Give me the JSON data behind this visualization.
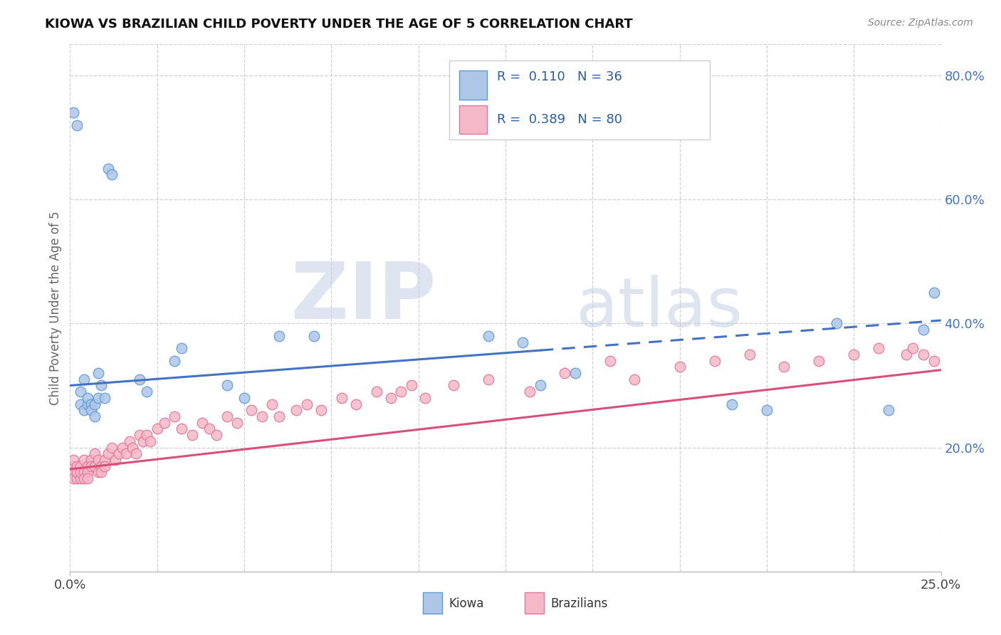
{
  "title": "KIOWA VS BRAZILIAN CHILD POVERTY UNDER THE AGE OF 5 CORRELATION CHART",
  "source": "Source: ZipAtlas.com",
  "ylabel": "Child Poverty Under the Age of 5",
  "right_yticks": [
    0.2,
    0.4,
    0.6,
    0.8
  ],
  "right_ytick_labels": [
    "20.0%",
    "40.0%",
    "60.0%",
    "80.0%"
  ],
  "xlim": [
    0.0,
    0.25
  ],
  "ylim": [
    0.0,
    0.85
  ],
  "kiowa_color": "#aec6e8",
  "kiowa_edge_color": "#5b9bd5",
  "brazilian_color": "#f4b8c8",
  "brazilian_edge_color": "#e07898",
  "trend_blue": "#4472c4",
  "trend_pink": "#d94f7a",
  "watermark_zip": "ZIP",
  "watermark_atlas": "atlas",
  "watermark_color": "#ccd5e8",
  "background_color": "#ffffff",
  "grid_color": "#d0d0d0",
  "kiowa_x": [
    0.001,
    0.002,
    0.003,
    0.003,
    0.004,
    0.004,
    0.005,
    0.005,
    0.006,
    0.006,
    0.007,
    0.007,
    0.008,
    0.008,
    0.009,
    0.01,
    0.011,
    0.012,
    0.02,
    0.022,
    0.03,
    0.032,
    0.045,
    0.05,
    0.06,
    0.07,
    0.12,
    0.13,
    0.135,
    0.145,
    0.19,
    0.2,
    0.22,
    0.235,
    0.245,
    0.248
  ],
  "kiowa_y": [
    0.74,
    0.72,
    0.27,
    0.29,
    0.26,
    0.31,
    0.27,
    0.28,
    0.27,
    0.26,
    0.27,
    0.25,
    0.28,
    0.32,
    0.3,
    0.28,
    0.65,
    0.64,
    0.31,
    0.29,
    0.34,
    0.36,
    0.3,
    0.28,
    0.38,
    0.38,
    0.38,
    0.37,
    0.3,
    0.32,
    0.27,
    0.26,
    0.4,
    0.26,
    0.39,
    0.45
  ],
  "brazilian_x": [
    0.001,
    0.001,
    0.001,
    0.001,
    0.002,
    0.002,
    0.002,
    0.003,
    0.003,
    0.003,
    0.004,
    0.004,
    0.004,
    0.005,
    0.005,
    0.005,
    0.006,
    0.006,
    0.007,
    0.007,
    0.008,
    0.008,
    0.009,
    0.009,
    0.01,
    0.01,
    0.011,
    0.012,
    0.013,
    0.014,
    0.015,
    0.016,
    0.017,
    0.018,
    0.019,
    0.02,
    0.021,
    0.022,
    0.023,
    0.025,
    0.027,
    0.03,
    0.032,
    0.035,
    0.038,
    0.04,
    0.042,
    0.045,
    0.048,
    0.052,
    0.055,
    0.058,
    0.06,
    0.065,
    0.068,
    0.072,
    0.078,
    0.082,
    0.088,
    0.092,
    0.095,
    0.098,
    0.102,
    0.11,
    0.12,
    0.132,
    0.142,
    0.155,
    0.162,
    0.175,
    0.185,
    0.195,
    0.205,
    0.215,
    0.225,
    0.232,
    0.24,
    0.242,
    0.245,
    0.248
  ],
  "brazilian_y": [
    0.17,
    0.16,
    0.15,
    0.18,
    0.17,
    0.15,
    0.16,
    0.15,
    0.17,
    0.16,
    0.16,
    0.18,
    0.15,
    0.17,
    0.16,
    0.15,
    0.18,
    0.17,
    0.19,
    0.17,
    0.16,
    0.18,
    0.17,
    0.16,
    0.18,
    0.17,
    0.19,
    0.2,
    0.18,
    0.19,
    0.2,
    0.19,
    0.21,
    0.2,
    0.19,
    0.22,
    0.21,
    0.22,
    0.21,
    0.23,
    0.24,
    0.25,
    0.23,
    0.22,
    0.24,
    0.23,
    0.22,
    0.25,
    0.24,
    0.26,
    0.25,
    0.27,
    0.25,
    0.26,
    0.27,
    0.26,
    0.28,
    0.27,
    0.29,
    0.28,
    0.29,
    0.3,
    0.28,
    0.3,
    0.31,
    0.29,
    0.32,
    0.34,
    0.31,
    0.33,
    0.34,
    0.35,
    0.33,
    0.34,
    0.35,
    0.36,
    0.35,
    0.36,
    0.35,
    0.34
  ],
  "trend_blue_x0": 0.0,
  "trend_blue_y0": 0.3,
  "trend_blue_x1": 0.25,
  "trend_blue_y1": 0.405,
  "trend_blue_solid_end": 0.135,
  "trend_pink_x0": 0.0,
  "trend_pink_y0": 0.165,
  "trend_pink_x1": 0.25,
  "trend_pink_y1": 0.325
}
